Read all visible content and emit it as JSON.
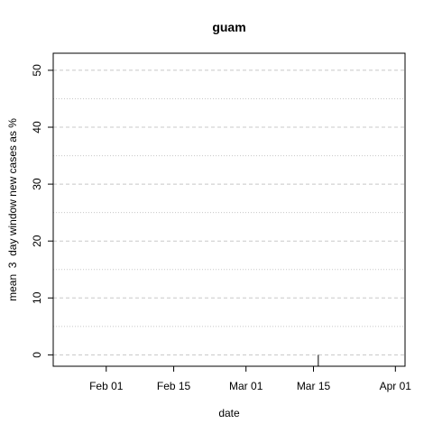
{
  "chart_data": {
    "type": "line",
    "title": "guam",
    "xlabel": "date",
    "ylabel": "mean  3  day window new cases as %",
    "x_range": [
      "2020-01-21",
      "2020-04-03"
    ],
    "ylim": [
      -2,
      53
    ],
    "y_ticks": [
      0,
      10,
      20,
      30,
      40,
      50
    ],
    "y_tick_labels": [
      "0",
      "10",
      "20",
      "30",
      "40",
      "50"
    ],
    "x_ticks": [
      "2020-02-01",
      "2020-02-15",
      "2020-03-01",
      "2020-03-15",
      "2020-04-01"
    ],
    "x_tick_labels": [
      "Feb 01",
      "Feb 15",
      "Mar 01",
      "Mar 15",
      "Apr 01"
    ],
    "grid": {
      "major_y_dashed": [
        0,
        10,
        20,
        30,
        40,
        50
      ],
      "minor_y_dotted": [
        5,
        15,
        25,
        35,
        45
      ]
    },
    "series": [
      {
        "x": [
          "2020-01-21",
          "2020-03-16"
        ],
        "y": [
          53,
          0
        ],
        "segments": [
          {
            "x0": "2020-01-21",
            "y0": 46,
            "x1": "2020-01-21",
            "y1": 53
          },
          {
            "x0": "2020-03-16",
            "y0": -2,
            "x1": "2020-03-16",
            "y1": 0
          }
        ]
      }
    ],
    "colors": {
      "line": "#000000",
      "grid": "#c8c8c8",
      "axis": "#000000"
    }
  }
}
